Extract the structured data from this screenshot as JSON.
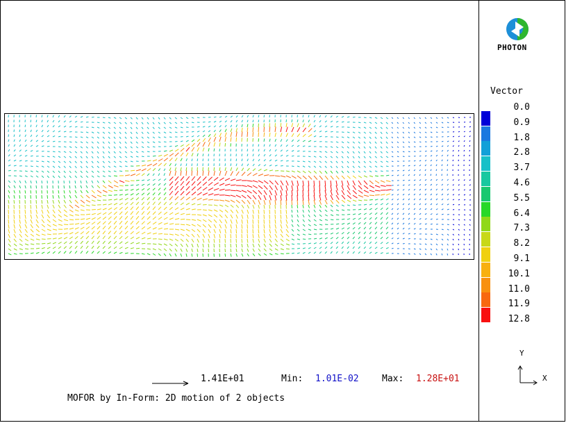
{
  "logo": {
    "text": "PHOTON",
    "icon": "photon-logo-icon"
  },
  "legend": {
    "title": "Vector",
    "entries": [
      {
        "value": "0.0",
        "color": ""
      },
      {
        "value": "0.9",
        "color": "#0000d8"
      },
      {
        "value": "1.8",
        "color": "#1a78e0"
      },
      {
        "value": "2.8",
        "color": "#12a0d8"
      },
      {
        "value": "3.7",
        "color": "#18c0c8"
      },
      {
        "value": "4.6",
        "color": "#18c8a0"
      },
      {
        "value": "5.5",
        "color": "#18c870"
      },
      {
        "value": "6.4",
        "color": "#28d828"
      },
      {
        "value": "7.3",
        "color": "#90d818"
      },
      {
        "value": "8.2",
        "color": "#c8d818"
      },
      {
        "value": "9.1",
        "color": "#f0d010"
      },
      {
        "value": "10.1",
        "color": "#f8b010"
      },
      {
        "value": "11.0",
        "color": "#f89010"
      },
      {
        "value": "11.9",
        "color": "#f86810"
      },
      {
        "value": "12.8",
        "color": "#f81010"
      }
    ]
  },
  "footer": {
    "scale_value": "1.41E+01",
    "min_label": "Min:",
    "min_value": "1.01E-02",
    "max_label": "Max:",
    "max_value": "1.28E+01",
    "caption": "MOFOR by In-Form: 2D motion of 2 objects"
  },
  "axes": {
    "y": "Y",
    "x": "X"
  }
}
